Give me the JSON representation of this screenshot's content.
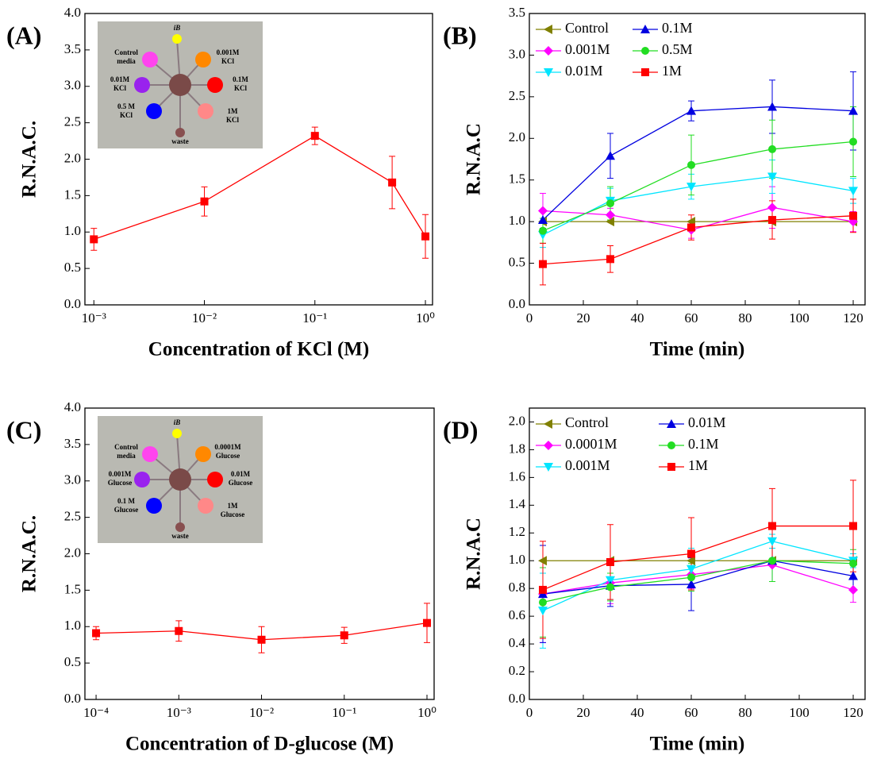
{
  "chart_data": [
    {
      "type": "line",
      "panel": "(A)",
      "xlabel": "Concentration of KCl (M)",
      "ylabel": "R.N.A.C.",
      "xscale": "log",
      "xlim": [
        0.00083,
        1.16
      ],
      "xticks": [
        {
          "value": 0.001,
          "label": "10⁻³"
        },
        {
          "value": 0.01,
          "label": "10⁻²"
        },
        {
          "value": 0.1,
          "label": "10⁻¹"
        },
        {
          "value": 1,
          "label": "10⁰"
        }
      ],
      "ylim": [
        0,
        4
      ],
      "yticks": [
        {
          "value": 0,
          "label": "0.0"
        },
        0.5,
        {
          "value": 1,
          "label": "1.0"
        },
        1.5,
        {
          "value": 2,
          "label": "2.0"
        },
        2.5,
        {
          "value": 3,
          "label": "3.0"
        },
        3.5,
        {
          "value": 4,
          "label": "4.0"
        }
      ],
      "x": [
        0.001,
        0.01,
        0.1,
        0.5,
        1
      ],
      "series": [
        {
          "color": "#ff0000",
          "marker": "square",
          "values": [
            0.9,
            1.42,
            2.32,
            1.68,
            0.94
          ],
          "errors": [
            0.15,
            0.2,
            0.12,
            0.36,
            0.3
          ]
        }
      ],
      "inset": {
        "labels": [
          [
            "iB"
          ],
          [
            "Control",
            "media"
          ],
          [
            "0.001M",
            "KCl"
          ],
          [
            "0.01M",
            "KCl"
          ],
          [
            "0.1M",
            "KCl"
          ],
          [
            "0.5 M",
            "KCl"
          ],
          [
            "1M",
            "KCl"
          ],
          [
            "waste"
          ]
        ]
      }
    },
    {
      "type": "line",
      "panel": "(B)",
      "xlabel": "Time (min)",
      "ylabel": "R.N.A.C",
      "xscale": "linear",
      "xlim": [
        0,
        124.4
      ],
      "xticks": [
        0,
        20,
        40,
        60,
        80,
        100,
        120
      ],
      "ylim": [
        0,
        3.5
      ],
      "yticks": [
        {
          "value": 0,
          "label": "0.0"
        },
        0.5,
        {
          "value": 1,
          "label": "1.0"
        },
        1.5,
        {
          "value": 2,
          "label": "2.0"
        },
        2.5,
        {
          "value": 3,
          "label": "3.0"
        },
        3.5
      ],
      "x": [
        5,
        30,
        60,
        90,
        120
      ],
      "series": [
        {
          "name": "Control",
          "color": "#808000",
          "marker": "triangle-left",
          "values": [
            1,
            1,
            1,
            1,
            1
          ]
        },
        {
          "name": "0.001M",
          "color": "#ff00ff",
          "marker": "diamond",
          "values": [
            1.13,
            1.08,
            0.9,
            1.17,
            1.0
          ],
          "errors": [
            0.21,
            0.08,
            0.1,
            0.25,
            0.12
          ]
        },
        {
          "name": "0.01M",
          "color": "#00e5ff",
          "marker": "triangle-down",
          "values": [
            0.84,
            1.25,
            1.42,
            1.54,
            1.37
          ],
          "errors": [
            0.15,
            0.15,
            0.15,
            0.2,
            0.15
          ]
        },
        {
          "name": "0.1M",
          "color": "#0000e0",
          "marker": "triangle-up",
          "values": [
            1.02,
            1.79,
            2.33,
            2.38,
            2.33
          ],
          "errors": [
            0.1,
            0.27,
            0.12,
            0.32,
            0.47
          ]
        },
        {
          "name": "0.5M",
          "color": "#22dd22",
          "marker": "circle",
          "values": [
            0.89,
            1.22,
            1.68,
            1.87,
            1.96
          ],
          "errors": [
            0.15,
            0.2,
            0.36,
            0.35,
            0.42
          ]
        },
        {
          "name": "1M",
          "color": "#ff0000",
          "marker": "square",
          "values": [
            0.49,
            0.55,
            0.93,
            1.02,
            1.07
          ],
          "errors": [
            0.25,
            0.16,
            0.15,
            0.23,
            0.2
          ]
        }
      ]
    },
    {
      "type": "line",
      "panel": "(C)",
      "xlabel": "Concentration of D-glucose (M)",
      "ylabel": "R.N.A.C.",
      "xscale": "log",
      "xlim": [
        7.33e-05,
        1.22
      ],
      "xticks": [
        {
          "value": 0.0001,
          "label": "10⁻⁴"
        },
        {
          "value": 0.001,
          "label": "10⁻³"
        },
        {
          "value": 0.01,
          "label": "10⁻²"
        },
        {
          "value": 0.1,
          "label": "10⁻¹"
        },
        {
          "value": 1,
          "label": "10⁰"
        }
      ],
      "ylim": [
        0,
        4
      ],
      "yticks": [
        {
          "value": 0,
          "label": "0.0"
        },
        0.5,
        {
          "value": 1,
          "label": "1.0"
        },
        1.5,
        {
          "value": 2,
          "label": "2.0"
        },
        2.5,
        {
          "value": 3,
          "label": "3.0"
        },
        3.5,
        {
          "value": 4,
          "label": "4.0"
        }
      ],
      "x": [
        0.0001,
        0.001,
        0.01,
        0.1,
        1
      ],
      "series": [
        {
          "color": "#ff0000",
          "marker": "square",
          "values": [
            0.91,
            0.94,
            0.82,
            0.88,
            1.05
          ],
          "errors": [
            0.09,
            0.14,
            0.18,
            0.11,
            0.27
          ]
        }
      ],
      "inset": {
        "labels": [
          [
            "iB"
          ],
          [
            "Control",
            "media"
          ],
          [
            "0.0001M",
            "Glucose"
          ],
          [
            "0.001M",
            "Glucose"
          ],
          [
            "0.01M",
            "Glucose"
          ],
          [
            "0.1 M",
            "Glucose"
          ],
          [
            "1M",
            "Glucose"
          ],
          [
            "waste"
          ]
        ]
      }
    },
    {
      "type": "line",
      "panel": "(D)",
      "xlabel": "Time (min)",
      "ylabel": "R.N.A.C",
      "xscale": "linear",
      "xlim": [
        0,
        124.4
      ],
      "xticks": [
        0,
        20,
        40,
        60,
        80,
        100,
        120
      ],
      "ylim": [
        0,
        2.1
      ],
      "yticks": [
        {
          "value": 0,
          "label": "0.0"
        },
        0.2,
        0.4,
        0.6,
        0.8,
        {
          "value": 1,
          "label": "1.0"
        },
        1.2,
        1.4,
        1.6,
        1.8,
        {
          "value": 2,
          "label": "2.0"
        }
      ],
      "x": [
        5,
        30,
        60,
        90,
        120
      ],
      "series": [
        {
          "name": "Control",
          "color": "#808000",
          "marker": "triangle-left",
          "values": [
            1,
            1,
            1,
            1,
            1
          ]
        },
        {
          "name": "0.0001M",
          "color": "#ff00ff",
          "marker": "diamond",
          "values": [
            0.76,
            0.84,
            0.9,
            0.97,
            0.79
          ],
          "errors": [
            0.35,
            0.15,
            0.1,
            0.12,
            0.09
          ]
        },
        {
          "name": "0.001M",
          "color": "#00e5ff",
          "marker": "triangle-down",
          "values": [
            0.64,
            0.86,
            0.94,
            1.14,
            1.0
          ],
          "errors": [
            0.27,
            0.14,
            0.15,
            0.05,
            0.05
          ]
        },
        {
          "name": "0.01M",
          "color": "#0000e0",
          "marker": "triangle-up",
          "values": [
            0.76,
            0.82,
            0.83,
            1.0,
            0.89
          ],
          "errors": [
            0.35,
            0.15,
            0.19,
            0.15,
            0.1
          ]
        },
        {
          "name": "0.1M",
          "color": "#22dd22",
          "marker": "circle",
          "values": [
            0.7,
            0.81,
            0.88,
            1.0,
            0.98
          ],
          "errors": [
            0.25,
            0.1,
            0.1,
            0.15,
            0.1
          ]
        },
        {
          "name": "1M",
          "color": "#ff0000",
          "marker": "square",
          "values": [
            0.79,
            0.99,
            1.05,
            1.25,
            1.25
          ],
          "errors": [
            0.35,
            0.27,
            0.26,
            0.27,
            0.33
          ]
        }
      ]
    }
  ]
}
